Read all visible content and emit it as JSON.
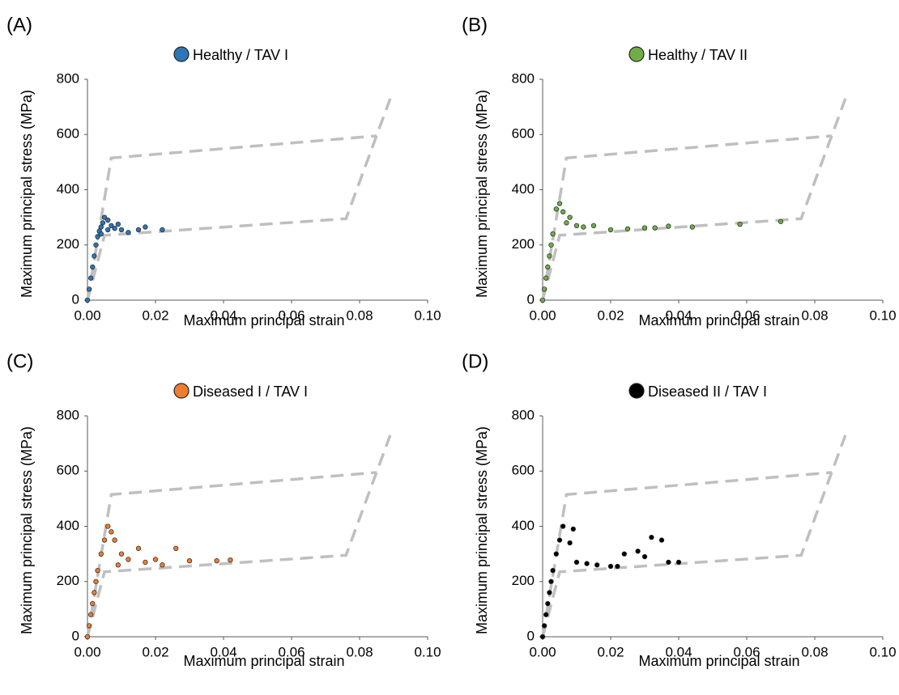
{
  "chart_data": [
    {
      "type": "scatter",
      "panel_label": "(A)",
      "xlabel": "Maximum principal strain",
      "ylabel": "Maximum principal stress (MPa)",
      "xlim": [
        0,
        0.1
      ],
      "ylim": [
        0,
        800
      ],
      "xticks": [
        {
          "value": 0,
          "label": "0.00"
        },
        {
          "value": 0.02,
          "label": "0.02"
        },
        {
          "value": 0.04,
          "label": "0.04"
        },
        {
          "value": 0.06,
          "label": "0.06"
        },
        {
          "value": 0.08,
          "label": "0.08"
        },
        {
          "value": 0.1,
          "label": "0.10"
        }
      ],
      "yticks": [
        0,
        200,
        400,
        600,
        800
      ],
      "reference_lines": {
        "color": "#bfbfbf",
        "lines": [
          {
            "x": [
              0,
              0.007,
              0.085
            ],
            "y": [
              0,
              515,
              595
            ]
          },
          {
            "x": [
              0,
              0.005,
              0.076,
              0.089
            ],
            "y": [
              0,
              235,
              295,
              730
            ]
          }
        ]
      },
      "series": [
        {
          "name": "Healthy / TAV I",
          "color": "#2e75b6",
          "x": [
            0,
            0.0005,
            0.001,
            0.0015,
            0.002,
            0.0025,
            0.003,
            0.0035,
            0.004,
            0.0045,
            0.005,
            0.006,
            0.007,
            0.008,
            0.009,
            0.01,
            0.012,
            0.015,
            0.017,
            0.022,
            0.006,
            0.004
          ],
          "y": [
            0,
            40,
            80,
            120,
            160,
            200,
            230,
            250,
            265,
            280,
            300,
            290,
            270,
            260,
            275,
            255,
            245,
            255,
            265,
            255,
            255,
            240
          ]
        }
      ]
    },
    {
      "type": "scatter",
      "panel_label": "(B)",
      "xlabel": "Maximum principal strain",
      "ylabel": "Maximum principal stress (MPa)",
      "xlim": [
        0,
        0.1
      ],
      "ylim": [
        0,
        800
      ],
      "xticks": [
        {
          "value": 0,
          "label": "0.00"
        },
        {
          "value": 0.02,
          "label": "0.02"
        },
        {
          "value": 0.04,
          "label": "0.04"
        },
        {
          "value": 0.06,
          "label": "0.06"
        },
        {
          "value": 0.08,
          "label": "0.08"
        },
        {
          "value": 0.1,
          "label": "0.10"
        }
      ],
      "yticks": [
        0,
        200,
        400,
        600,
        800
      ],
      "reference_lines": {
        "color": "#bfbfbf",
        "lines": [
          {
            "x": [
              0,
              0.007,
              0.085
            ],
            "y": [
              0,
              515,
              595
            ]
          },
          {
            "x": [
              0,
              0.005,
              0.076,
              0.089
            ],
            "y": [
              0,
              235,
              295,
              730
            ]
          }
        ]
      },
      "series": [
        {
          "name": "Healthy / TAV II",
          "color": "#70ad47",
          "x": [
            0,
            0.0005,
            0.001,
            0.0015,
            0.002,
            0.0025,
            0.003,
            0.004,
            0.005,
            0.006,
            0.007,
            0.008,
            0.01,
            0.012,
            0.015,
            0.02,
            0.025,
            0.03,
            0.033,
            0.037,
            0.044,
            0.058,
            0.07
          ],
          "y": [
            0,
            40,
            80,
            120,
            160,
            200,
            240,
            330,
            350,
            320,
            280,
            300,
            270,
            265,
            270,
            255,
            258,
            262,
            262,
            268,
            265,
            275,
            285
          ]
        }
      ]
    },
    {
      "type": "scatter",
      "panel_label": "(C)",
      "xlabel": "Maximum principal strain",
      "ylabel": "Maximum principal stress (MPa)",
      "xlim": [
        0,
        0.1
      ],
      "ylim": [
        0,
        800
      ],
      "xticks": [
        {
          "value": 0,
          "label": "0.00"
        },
        {
          "value": 0.02,
          "label": "0.02"
        },
        {
          "value": 0.04,
          "label": "0.04"
        },
        {
          "value": 0.06,
          "label": "0.06"
        },
        {
          "value": 0.08,
          "label": "0.08"
        },
        {
          "value": 0.1,
          "label": "0.10"
        }
      ],
      "yticks": [
        0,
        200,
        400,
        600,
        800
      ],
      "reference_lines": {
        "color": "#bfbfbf",
        "lines": [
          {
            "x": [
              0,
              0.007,
              0.085
            ],
            "y": [
              0,
              515,
              595
            ]
          },
          {
            "x": [
              0,
              0.005,
              0.076,
              0.089
            ],
            "y": [
              0,
              235,
              295,
              730
            ]
          }
        ]
      },
      "series": [
        {
          "name": "Diseased I / TAV I",
          "color": "#ed7d31",
          "x": [
            0,
            0.0005,
            0.001,
            0.0015,
            0.002,
            0.0025,
            0.003,
            0.004,
            0.005,
            0.006,
            0.007,
            0.008,
            0.009,
            0.01,
            0.012,
            0.015,
            0.017,
            0.02,
            0.022,
            0.026,
            0.03,
            0.038,
            0.042
          ],
          "y": [
            0,
            40,
            80,
            120,
            160,
            200,
            240,
            300,
            350,
            400,
            380,
            350,
            260,
            300,
            280,
            320,
            270,
            280,
            260,
            320,
            275,
            275,
            278
          ]
        }
      ]
    },
    {
      "type": "scatter",
      "panel_label": "(D)",
      "xlabel": "Maximum principal strain",
      "ylabel": "Maximum principal stress (MPa)",
      "xlim": [
        0,
        0.1
      ],
      "ylim": [
        0,
        800
      ],
      "xticks": [
        {
          "value": 0,
          "label": "0.00"
        },
        {
          "value": 0.02,
          "label": "0.02"
        },
        {
          "value": 0.04,
          "label": "0.04"
        },
        {
          "value": 0.06,
          "label": "0.06"
        },
        {
          "value": 0.08,
          "label": "0.08"
        },
        {
          "value": 0.1,
          "label": "0.10"
        }
      ],
      "yticks": [
        0,
        200,
        400,
        600,
        800
      ],
      "reference_lines": {
        "color": "#bfbfbf",
        "lines": [
          {
            "x": [
              0,
              0.007,
              0.085
            ],
            "y": [
              0,
              515,
              595
            ]
          },
          {
            "x": [
              0,
              0.005,
              0.076,
              0.089
            ],
            "y": [
              0,
              235,
              295,
              730
            ]
          }
        ]
      },
      "series": [
        {
          "name": "Diseased II / TAV I",
          "color": "#000000",
          "x": [
            0,
            0.0005,
            0.001,
            0.0015,
            0.002,
            0.0025,
            0.003,
            0.004,
            0.005,
            0.006,
            0.008,
            0.009,
            0.01,
            0.013,
            0.016,
            0.02,
            0.022,
            0.024,
            0.028,
            0.03,
            0.032,
            0.035,
            0.037,
            0.04
          ],
          "y": [
            0,
            40,
            80,
            120,
            160,
            200,
            240,
            300,
            350,
            400,
            340,
            390,
            270,
            265,
            260,
            255,
            255,
            300,
            310,
            290,
            360,
            350,
            270,
            270
          ]
        }
      ]
    }
  ]
}
